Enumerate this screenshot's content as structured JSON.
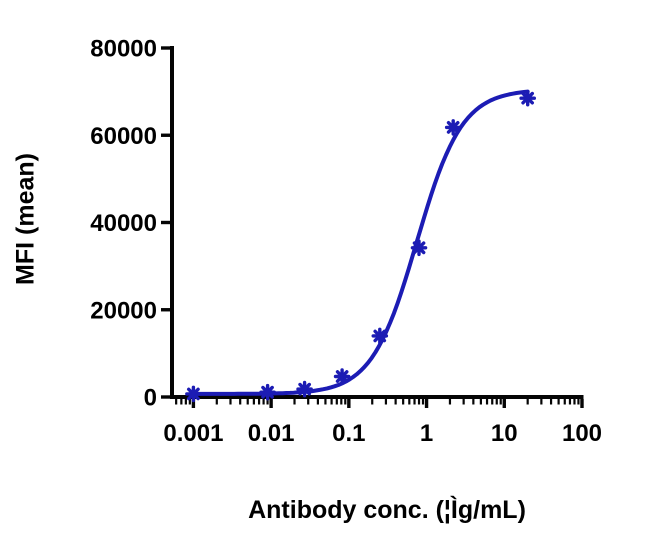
{
  "figure": {
    "background": "#ffffff"
  },
  "chart_data": {
    "type": "scatter",
    "title": "",
    "xlabel": "Antibody conc. (¦Ìg/mL)",
    "ylabel": "MFI (mean)",
    "x_scale": "log",
    "xlim": [
      0.0005,
      100
    ],
    "ylim": [
      0,
      80000
    ],
    "grid": false,
    "legend": "none",
    "x_ticks": [
      0.001,
      0.01,
      0.1,
      1,
      10,
      100
    ],
    "x_tick_labels": [
      "0.001",
      "0.01",
      "0.1",
      "1",
      "10",
      "100"
    ],
    "y_ticks": [
      0,
      20000,
      40000,
      60000,
      80000
    ],
    "y_tick_labels": [
      "0",
      "20000",
      "40000",
      "60000",
      "80000"
    ],
    "points": [
      {
        "x": 0.001,
        "y": 700
      },
      {
        "x": 0.009,
        "y": 1100
      },
      {
        "x": 0.027,
        "y": 1800
      },
      {
        "x": 0.082,
        "y": 4700
      },
      {
        "x": 0.25,
        "y": 14000
      },
      {
        "x": 0.8,
        "y": 34200
      },
      {
        "x": 2.2,
        "y": 61800
      },
      {
        "x": 20,
        "y": 68500
      }
    ],
    "curve_fit": {
      "model": "4PL sigmoidal dose-response",
      "bottom": 700,
      "top": 70500,
      "ec50": 0.75,
      "hill": 1.5,
      "x_min": 0.001,
      "x_max": 20
    },
    "colors": {
      "curve": "#1c1cb4",
      "marker": "#1c1cb4",
      "axis": "#050505",
      "text": "#000000"
    }
  }
}
